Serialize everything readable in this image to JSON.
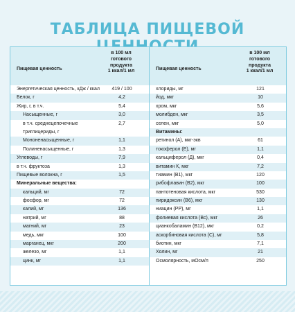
{
  "title": "ТАБЛИЦА ПИЩЕВОЙ ЦЕННОСТИ",
  "left": {
    "header_label": "Пищевая ценность",
    "header_per": [
      "в 100 мл",
      "готового",
      "продукта",
      "1 ккал/1 мл"
    ],
    "rows": [
      {
        "label": "Энергетическая ценность, кДж / ккал",
        "value": "419 / 100",
        "shaded": false,
        "indent": false,
        "section": false
      },
      {
        "label": "Белок, г",
        "value": "4,2",
        "shaded": true,
        "indent": false,
        "section": false
      },
      {
        "label": "Жир, г, в т.ч.",
        "value": "5,4",
        "shaded": false,
        "indent": false,
        "section": false
      },
      {
        "label": "Насыщенные, г",
        "value": "3,0",
        "shaded": true,
        "indent": true,
        "section": false
      },
      {
        "label": "в т.ч. среднецепочечные",
        "value": "2,7",
        "shaded": false,
        "indent": true,
        "section": false
      },
      {
        "label": "триглицериды, г",
        "value": "",
        "shaded": false,
        "indent": true,
        "section": false
      },
      {
        "label": "Мононенасыщенные, г",
        "value": "1,1",
        "shaded": true,
        "indent": true,
        "section": false
      },
      {
        "label": "Полиненасыщенные, г",
        "value": "1,3",
        "shaded": false,
        "indent": true,
        "section": false
      },
      {
        "label": "Углеводы, г",
        "value": "7,9",
        "shaded": true,
        "indent": false,
        "section": false
      },
      {
        "label": "в т.ч. фруктоза",
        "value": "1,3",
        "shaded": false,
        "indent": false,
        "section": false
      },
      {
        "label": "Пищевые волокна, г",
        "value": "1,5",
        "shaded": true,
        "indent": false,
        "section": false
      },
      {
        "label": "Минеральные вещества:",
        "value": "",
        "shaded": false,
        "indent": false,
        "section": true
      },
      {
        "label": "кальций, мг",
        "value": "72",
        "shaded": true,
        "indent": true,
        "section": false
      },
      {
        "label": "фосфор, мг",
        "value": "72",
        "shaded": false,
        "indent": true,
        "section": false
      },
      {
        "label": "калий, мг",
        "value": "136",
        "shaded": true,
        "indent": true,
        "section": false
      },
      {
        "label": "натрий, мг",
        "value": "88",
        "shaded": false,
        "indent": true,
        "section": false
      },
      {
        "label": "магний, мг",
        "value": "23",
        "shaded": true,
        "indent": true,
        "section": false
      },
      {
        "label": "медь, мкг",
        "value": "100",
        "shaded": false,
        "indent": true,
        "section": false
      },
      {
        "label": "марганец, мкг",
        "value": "200",
        "shaded": true,
        "indent": true,
        "section": false
      },
      {
        "label": "железо, мг",
        "value": "1,1",
        "shaded": false,
        "indent": true,
        "section": false
      },
      {
        "label": "цинк, мг",
        "value": "1,1",
        "shaded": true,
        "indent": true,
        "section": false
      }
    ]
  },
  "right": {
    "header_label": "Пищевая ценность",
    "header_per": [
      "в 100 мл",
      "готового",
      "продукта",
      "1 ккал/1 мл"
    ],
    "rows": [
      {
        "label": "хлориды, мг",
        "value": "121",
        "shaded": false,
        "indent": false,
        "section": false
      },
      {
        "label": "йод, мкг",
        "value": "10",
        "shaded": true,
        "indent": false,
        "section": false
      },
      {
        "label": "хром, мкг",
        "value": "5,6",
        "shaded": false,
        "indent": false,
        "section": false
      },
      {
        "label": "молибден, мкг",
        "value": "3,5",
        "shaded": true,
        "indent": false,
        "section": false
      },
      {
        "label": "селен, мкг",
        "value": "5,0",
        "shaded": false,
        "indent": false,
        "section": false
      },
      {
        "label": "Витамины:",
        "value": "",
        "shaded": true,
        "indent": false,
        "section": true
      },
      {
        "label": "ретинол (А), мкг-экв",
        "value": "61",
        "shaded": false,
        "indent": false,
        "section": false
      },
      {
        "label": "токоферол (Е), мг",
        "value": "1,1",
        "shaded": true,
        "indent": false,
        "section": false
      },
      {
        "label": "кальциферол (Д), мкг",
        "value": "0,4",
        "shaded": false,
        "indent": false,
        "section": false
      },
      {
        "label": "витамин К, мкг",
        "value": "7,2",
        "shaded": true,
        "indent": false,
        "section": false
      },
      {
        "label": "тиамин (В1), мкг",
        "value": "120",
        "shaded": false,
        "indent": false,
        "section": false
      },
      {
        "label": "рибофлавин (В2), мкг",
        "value": "100",
        "shaded": true,
        "indent": false,
        "section": false
      },
      {
        "label": "пантотеновая кислота, мкг",
        "value": "530",
        "shaded": false,
        "indent": false,
        "section": false
      },
      {
        "label": "пиридоксин (В6), мкг",
        "value": "130",
        "shaded": true,
        "indent": false,
        "section": false
      },
      {
        "label": "ниацин (РР), мг",
        "value": "1,1",
        "shaded": false,
        "indent": false,
        "section": false
      },
      {
        "label": "фолиевая кислота (Вс), мкг",
        "value": "26",
        "shaded": true,
        "indent": false,
        "section": false
      },
      {
        "label": "цианкобаламин (В12), мкг",
        "value": "0,2",
        "shaded": false,
        "indent": false,
        "section": false
      },
      {
        "label": "аскорбиновая кислота (С), мг",
        "value": "5,8",
        "shaded": true,
        "indent": false,
        "section": false
      },
      {
        "label": "биотин, мкг",
        "value": "7,1",
        "shaded": false,
        "indent": false,
        "section": false
      },
      {
        "label": "Холин, мг",
        "value": "21",
        "shaded": true,
        "indent": false,
        "section": false
      },
      {
        "label": "Осмолярность, мОсм/л",
        "value": "250",
        "shaded": false,
        "indent": false,
        "section": false
      }
    ]
  }
}
